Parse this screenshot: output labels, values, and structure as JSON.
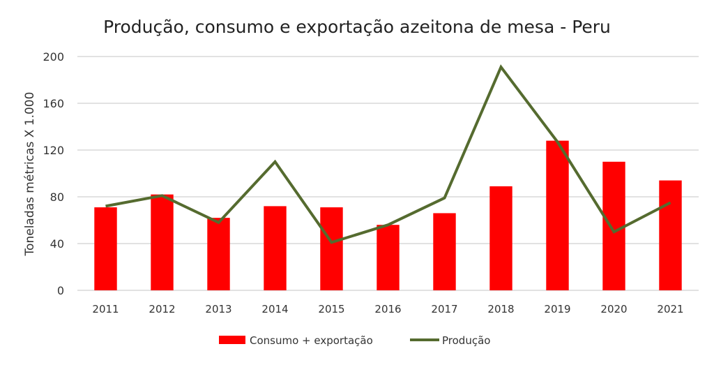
{
  "chart_data": {
    "type": "bar+line",
    "title": "Produção, consumo e exportação azeitona de mesa - Peru",
    "xlabel": "",
    "ylabel": "Toneladas métricas X 1.000",
    "ylim": [
      0,
      200
    ],
    "yticks": [
      0,
      40,
      80,
      120,
      160,
      200
    ],
    "grid": true,
    "legend_position": "bottom",
    "categories": [
      "2011",
      "2012",
      "2013",
      "2014",
      "2015",
      "2016",
      "2017",
      "2018",
      "2019",
      "2020",
      "2021"
    ],
    "series": [
      {
        "name": "Consumo + exportação",
        "type": "bar",
        "color": "#ff0000",
        "values": [
          71,
          82,
          62,
          72,
          71,
          56,
          66,
          89,
          128,
          110,
          94
        ]
      },
      {
        "name": "Produção",
        "type": "line",
        "color": "#556b2f",
        "values": [
          72,
          81,
          58,
          110,
          41,
          56,
          79,
          191,
          127,
          50,
          75
        ]
      }
    ]
  }
}
